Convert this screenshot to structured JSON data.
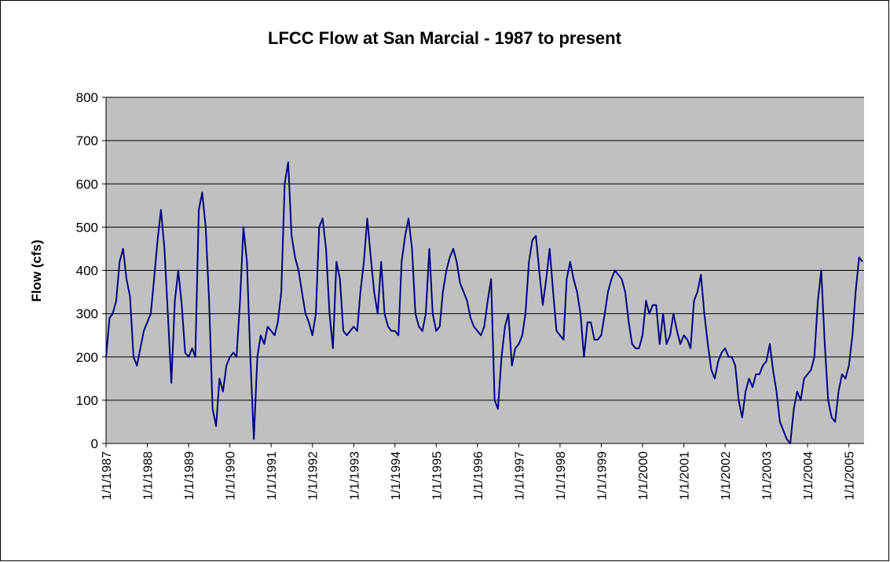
{
  "chart_data": {
    "type": "line",
    "title": "LFCC Flow at San Marcial - 1987 to present",
    "y_label": "Flow (cfs)",
    "color": "#000080",
    "grid": true,
    "ylim": [
      0,
      800
    ],
    "yticks": [
      0,
      100,
      200,
      300,
      400,
      500,
      600,
      700,
      800
    ],
    "xlim": [
      "1/1/1987",
      "5/15/2005"
    ],
    "xticks": [
      "1/1/1987",
      "1/1/1988",
      "1/1/1989",
      "1/1/1990",
      "1/1/1991",
      "1/1/1992",
      "1/1/1993",
      "1/1/1994",
      "1/1/1995",
      "1/1/1996",
      "1/1/1997",
      "1/1/1998",
      "1/1/1999",
      "1/1/2000",
      "1/1/2001",
      "1/1/2002",
      "1/1/2003",
      "1/1/2004",
      "1/1/2005"
    ],
    "x": [
      "1/1/1987",
      "2/1/1987",
      "3/1/1987",
      "4/1/1987",
      "5/1/1987",
      "6/1/1987",
      "7/1/1987",
      "8/1/1987",
      "9/1/1987",
      "10/1/1987",
      "11/1/1987",
      "12/1/1987",
      "1/1/1988",
      "2/1/1988",
      "3/1/1988",
      "4/1/1988",
      "5/1/1988",
      "6/1/1988",
      "7/1/1988",
      "8/1/1988",
      "9/1/1988",
      "10/1/1988",
      "11/1/1988",
      "12/1/1988",
      "1/1/1989",
      "2/1/1989",
      "3/1/1989",
      "4/1/1989",
      "5/1/1989",
      "6/1/1989",
      "7/1/1989",
      "8/1/1989",
      "9/1/1989",
      "10/1/1989",
      "11/1/1989",
      "12/1/1989",
      "1/1/1990",
      "2/1/1990",
      "3/1/1990",
      "4/1/1990",
      "5/1/1990",
      "6/1/1990",
      "7/1/1990",
      "8/1/1990",
      "9/1/1990",
      "10/1/1990",
      "11/1/1990",
      "12/1/1990",
      "1/1/1991",
      "2/1/1991",
      "3/1/1991",
      "4/1/1991",
      "5/1/1991",
      "6/1/1991",
      "7/1/1991",
      "8/1/1991",
      "9/1/1991",
      "10/1/1991",
      "11/1/1991",
      "12/1/1991",
      "1/1/1992",
      "2/1/1992",
      "3/1/1992",
      "4/1/1992",
      "5/1/1992",
      "6/1/1992",
      "7/1/1992",
      "8/1/1992",
      "9/1/1992",
      "10/1/1992",
      "11/1/1992",
      "12/1/1992",
      "1/1/1993",
      "2/1/1993",
      "3/1/1993",
      "4/1/1993",
      "5/1/1993",
      "6/1/1993",
      "7/1/1993",
      "8/1/1993",
      "9/1/1993",
      "10/1/1993",
      "11/1/1993",
      "12/1/1993",
      "1/1/1994",
      "2/1/1994",
      "3/1/1994",
      "4/1/1994",
      "5/1/1994",
      "6/1/1994",
      "7/1/1994",
      "8/1/1994",
      "9/1/1994",
      "10/1/1994",
      "11/1/1994",
      "12/1/1994",
      "1/1/1995",
      "2/1/1995",
      "3/1/1995",
      "4/1/1995",
      "5/1/1995",
      "6/1/1995",
      "7/1/1995",
      "8/1/1995",
      "9/1/1995",
      "10/1/1995",
      "11/1/1995",
      "12/1/1995",
      "1/1/1996",
      "2/1/1996",
      "3/1/1996",
      "4/1/1996",
      "5/1/1996",
      "6/1/1996",
      "7/1/1996",
      "8/1/1996",
      "9/1/1996",
      "10/1/1996",
      "11/1/1996",
      "12/1/1996",
      "1/1/1997",
      "2/1/1997",
      "3/1/1997",
      "4/1/1997",
      "5/1/1997",
      "6/1/1997",
      "7/1/1997",
      "8/1/1997",
      "9/1/1997",
      "10/1/1997",
      "11/1/1997",
      "12/1/1997",
      "1/1/1998",
      "2/1/1998",
      "3/1/1998",
      "4/1/1998",
      "5/1/1998",
      "6/1/1998",
      "7/1/1998",
      "8/1/1998",
      "9/1/1998",
      "10/1/1998",
      "11/1/1998",
      "12/1/1998",
      "1/1/1999",
      "2/1/1999",
      "3/1/1999",
      "4/1/1999",
      "5/1/1999",
      "6/1/1999",
      "7/1/1999",
      "8/1/1999",
      "9/1/1999",
      "10/1/1999",
      "11/1/1999",
      "12/1/1999",
      "1/1/2000",
      "2/1/2000",
      "3/1/2000",
      "4/1/2000",
      "5/1/2000",
      "6/1/2000",
      "7/1/2000",
      "8/1/2000",
      "9/1/2000",
      "10/1/2000",
      "11/1/2000",
      "12/1/2000",
      "1/1/2001",
      "2/1/2001",
      "3/1/2001",
      "4/1/2001",
      "5/1/2001",
      "6/1/2001",
      "7/1/2001",
      "8/1/2001",
      "9/1/2001",
      "10/1/2001",
      "11/1/2001",
      "12/1/2001",
      "1/1/2002",
      "2/1/2002",
      "3/1/2002",
      "4/1/2002",
      "5/1/2002",
      "6/1/2002",
      "7/1/2002",
      "8/1/2002",
      "9/1/2002",
      "10/1/2002",
      "11/1/2002",
      "12/1/2002",
      "1/1/2003",
      "2/1/2003",
      "3/1/2003",
      "4/1/2003",
      "5/1/2003",
      "6/1/2003",
      "7/1/2003",
      "8/1/2003",
      "9/1/2003",
      "10/1/2003",
      "11/1/2003",
      "12/1/2003",
      "1/1/2004",
      "2/1/2004",
      "3/1/2004",
      "4/1/2004",
      "5/1/2004",
      "6/1/2004",
      "7/1/2004",
      "8/1/2004",
      "9/1/2004",
      "10/1/2004",
      "11/1/2004",
      "12/1/2004",
      "1/1/2005",
      "2/1/2005",
      "3/1/2005",
      "4/1/2005",
      "5/1/2005"
    ],
    "values": [
      200,
      290,
      300,
      330,
      420,
      450,
      380,
      340,
      200,
      180,
      220,
      260,
      280,
      300,
      380,
      470,
      540,
      450,
      300,
      140,
      330,
      400,
      320,
      210,
      200,
      220,
      200,
      540,
      580,
      500,
      330,
      80,
      40,
      150,
      120,
      180,
      200,
      210,
      200,
      330,
      500,
      420,
      200,
      10,
      200,
      250,
      230,
      270,
      260,
      250,
      280,
      350,
      600,
      650,
      480,
      430,
      400,
      350,
      300,
      280,
      250,
      300,
      500,
      520,
      450,
      300,
      220,
      420,
      380,
      260,
      250,
      260,
      270,
      260,
      350,
      420,
      520,
      430,
      350,
      300,
      420,
      300,
      270,
      260,
      260,
      250,
      420,
      480,
      520,
      450,
      300,
      270,
      260,
      300,
      450,
      300,
      260,
      270,
      350,
      400,
      430,
      450,
      420,
      370,
      350,
      330,
      290,
      270,
      260,
      250,
      270,
      330,
      380,
      100,
      80,
      200,
      270,
      300,
      180,
      220,
      230,
      250,
      300,
      420,
      470,
      480,
      400,
      320,
      380,
      450,
      350,
      260,
      250,
      240,
      380,
      420,
      380,
      350,
      300,
      200,
      280,
      280,
      240,
      240,
      250,
      300,
      350,
      380,
      400,
      390,
      380,
      350,
      280,
      230,
      220,
      220,
      250,
      330,
      300,
      320,
      320,
      230,
      300,
      230,
      250,
      300,
      260,
      230,
      250,
      240,
      220,
      330,
      350,
      390,
      300,
      230,
      170,
      150,
      190,
      210,
      220,
      200,
      200,
      180,
      100,
      60,
      120,
      150,
      130,
      160,
      160,
      180,
      190,
      230,
      170,
      120,
      50,
      30,
      10,
      0,
      80,
      120,
      100,
      150,
      160,
      170,
      200,
      330,
      400,
      230,
      100,
      60,
      50,
      120,
      160,
      150,
      180,
      250,
      350,
      430,
      420
    ]
  }
}
